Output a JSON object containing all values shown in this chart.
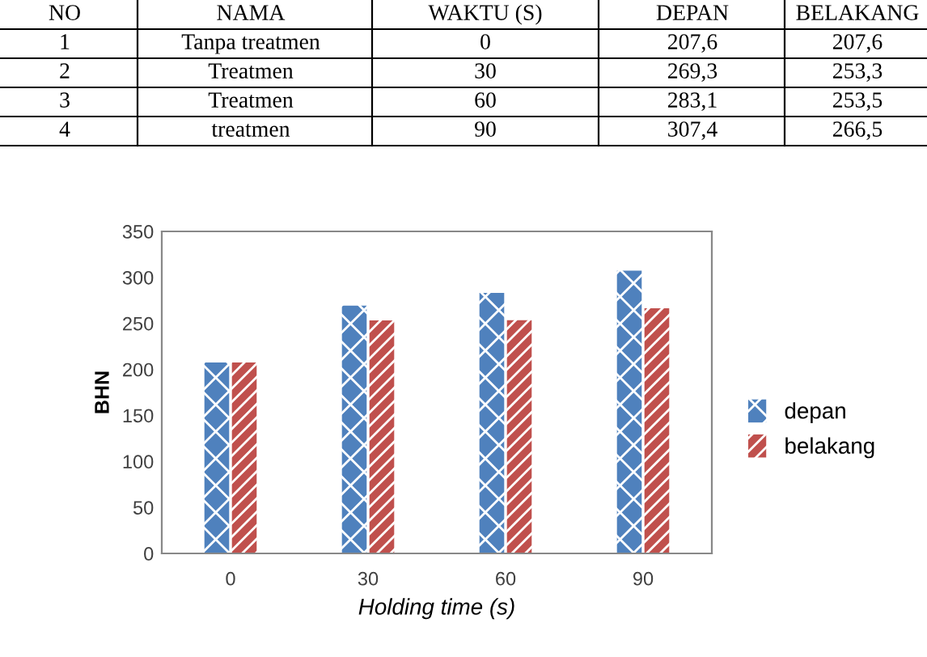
{
  "chart_data": {
    "type": "bar",
    "xlabel": "Holding time (s)",
    "ylabel": "BHN",
    "categories": [
      "0",
      "30",
      "60",
      "90"
    ],
    "series": [
      {
        "name": "depan",
        "color": "#4f81bd",
        "values": [
          207.6,
          269.3,
          283.1,
          307.4
        ]
      },
      {
        "name": "belakang",
        "color": "#c0504d",
        "values": [
          207.6,
          253.3,
          253.5,
          266.5
        ]
      }
    ],
    "ylim": [
      0,
      350
    ],
    "yticks": [
      0,
      50,
      100,
      150,
      200,
      250,
      300,
      350
    ],
    "grid": false,
    "legend": "right",
    "annotations": [
      "NO",
      "NAMA",
      "WAKTU (S)",
      "DEPAN",
      "BELAKANG",
      "1",
      "Tanpa treatmen",
      "0",
      "207,6",
      "207,6",
      "2",
      "Treatmen",
      "30",
      "269,3",
      "253,3",
      "3",
      "Treatmen",
      "60",
      "283,1",
      "253,5",
      "4",
      "treatmen",
      "90",
      "307,4",
      "266,5"
    ]
  }
}
